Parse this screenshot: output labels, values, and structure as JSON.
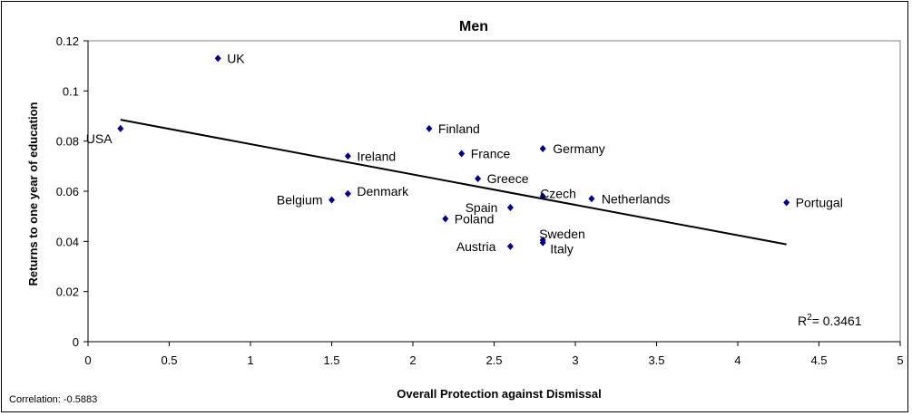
{
  "chart_data": {
    "type": "scatter",
    "title": "Men",
    "xlabel": "Overall Protection against Dismissal",
    "ylabel": "Returns to one year of education",
    "xlim": [
      0,
      5
    ],
    "ylim": [
      0,
      0.12
    ],
    "x_ticks": [
      "0",
      "0.5",
      "1",
      "1.5",
      "2",
      "2.5",
      "3",
      "3.5",
      "4",
      "4.5",
      "5"
    ],
    "y_ticks": [
      "0",
      "0.02",
      "0.04",
      "0.06",
      "0.08",
      "0.1",
      "0.12"
    ],
    "points": [
      {
        "label": "USA",
        "x": 0.2,
        "y": 0.085
      },
      {
        "label": "UK",
        "x": 0.8,
        "y": 0.113
      },
      {
        "label": "Ireland",
        "x": 1.6,
        "y": 0.074
      },
      {
        "label": "Belgium",
        "x": 1.5,
        "y": 0.0565
      },
      {
        "label": "Denmark",
        "x": 1.6,
        "y": 0.059
      },
      {
        "label": "Finland",
        "x": 2.1,
        "y": 0.085
      },
      {
        "label": "France",
        "x": 2.3,
        "y": 0.075
      },
      {
        "label": "Greece",
        "x": 2.4,
        "y": 0.065
      },
      {
        "label": "Poland",
        "x": 2.2,
        "y": 0.049
      },
      {
        "label": "Spain",
        "x": 2.6,
        "y": 0.0535
      },
      {
        "label": "Austria",
        "x": 2.6,
        "y": 0.038
      },
      {
        "label": "Germany",
        "x": 2.8,
        "y": 0.077
      },
      {
        "label": "Czech",
        "x": 2.8,
        "y": 0.058
      },
      {
        "label": "Sweden",
        "x": 2.8,
        "y": 0.0405
      },
      {
        "label": "Italy",
        "x": 2.8,
        "y": 0.0395
      },
      {
        "label": "Netherlands",
        "x": 3.1,
        "y": 0.057
      },
      {
        "label": "Portugal",
        "x": 4.3,
        "y": 0.0555
      }
    ],
    "trendline": {
      "x": [
        0.2,
        4.3
      ],
      "y": [
        0.0885,
        0.0388
      ]
    },
    "r_squared_text": "= 0.3461",
    "grid": false,
    "marker_color": "#00008B"
  },
  "footer": {
    "correlation_text": "Correlation: -0.5883"
  }
}
